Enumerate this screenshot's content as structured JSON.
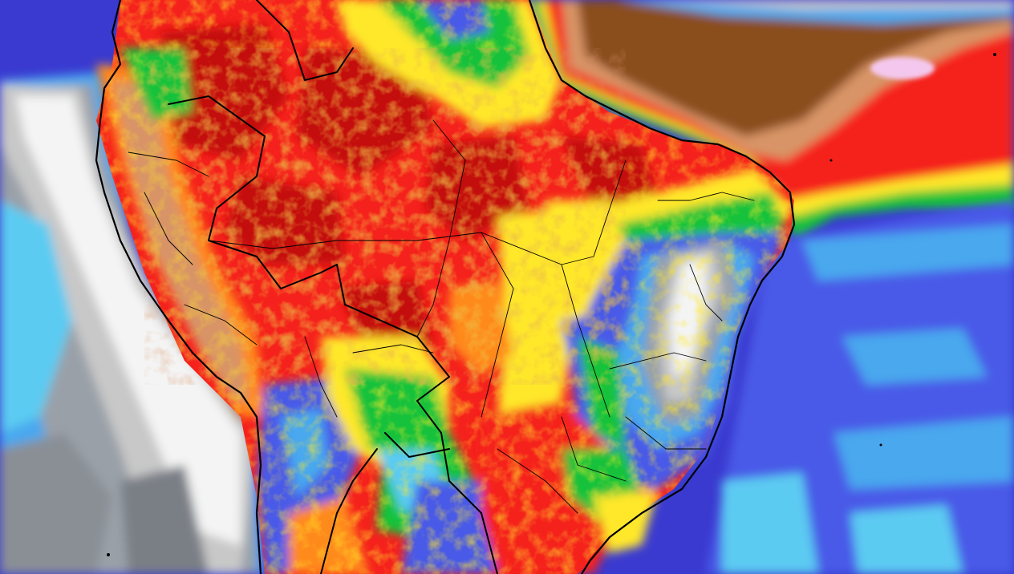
{
  "map": {
    "palette": {
      "ocean_deep": "#3a3ad0",
      "ocean_blue": "#4a5ae8",
      "light_blue": "#4aa8ee",
      "cyan": "#5ccbf2",
      "grey_dark": "#6e6e6e",
      "grey_light": "#c8c8c8",
      "white": "#f4f4f4",
      "green": "#12c23a",
      "yellow_green": "#b8e016",
      "yellow": "#ffe82a",
      "orange": "#ff8a1a",
      "red": "#f5211c",
      "dark_red": "#c40c10",
      "tan": "#d89466",
      "brown": "#8a4e1c",
      "pink": "#f4c8ee",
      "border": "#000000"
    }
  }
}
